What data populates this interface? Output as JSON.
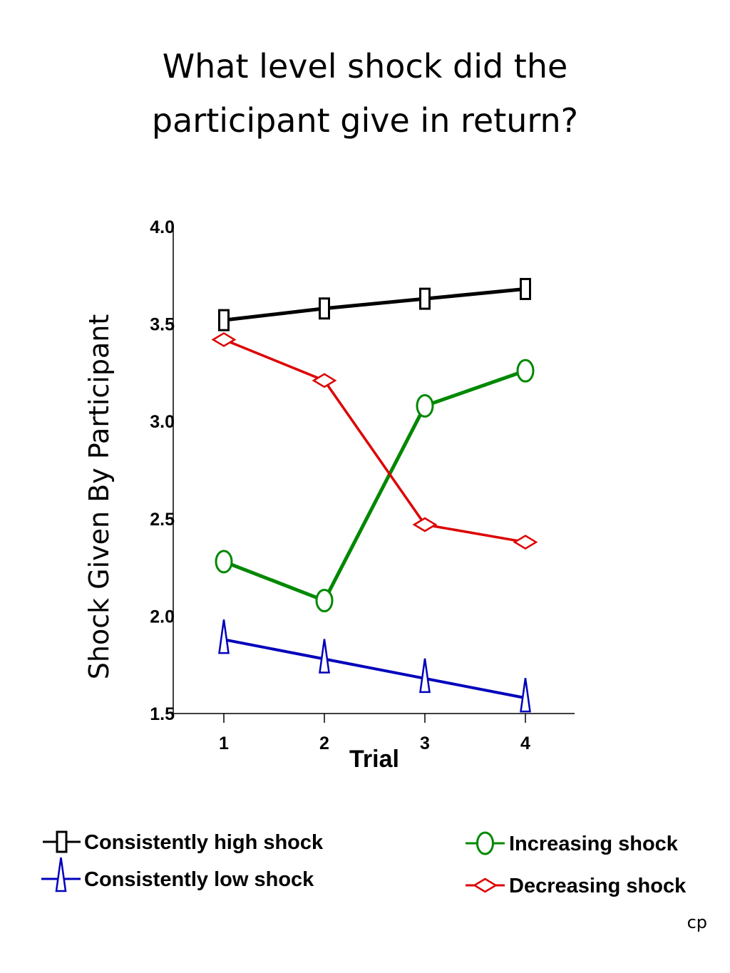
{
  "title": {
    "line1": "What level shock did the",
    "line2": "participant give in return?"
  },
  "footer": "cp",
  "chart_data": {
    "type": "line",
    "x": [
      1,
      2,
      3,
      4
    ],
    "x_tick_labels": [
      "1",
      "2",
      "3",
      "4"
    ],
    "y_tick_labels": [
      "1.5",
      "2.0",
      "2.5",
      "3.0",
      "3.5",
      "4.0"
    ],
    "xlabel": "Trial",
    "ylabel": "Shock Given By Participant",
    "ylim": [
      1.5,
      4.0
    ],
    "grid": false,
    "legend_position": "bottom",
    "series": [
      {
        "name": "Consistently high shock",
        "values": [
          3.52,
          3.58,
          3.63,
          3.68
        ],
        "color": "#000000",
        "marker": "rectangle"
      },
      {
        "name": "Increasing shock",
        "values": [
          2.28,
          2.08,
          3.08,
          3.26
        ],
        "color": "#008800",
        "marker": "ellipse"
      },
      {
        "name": "Decreasing shock",
        "values": [
          3.42,
          3.21,
          2.47,
          2.38
        ],
        "color": "#dd0000",
        "marker": "diamond"
      },
      {
        "name": "Consistently low shock",
        "values": [
          1.88,
          1.78,
          1.68,
          1.58
        ],
        "color": "#0000bb",
        "marker": "spike-triangle"
      }
    ]
  }
}
